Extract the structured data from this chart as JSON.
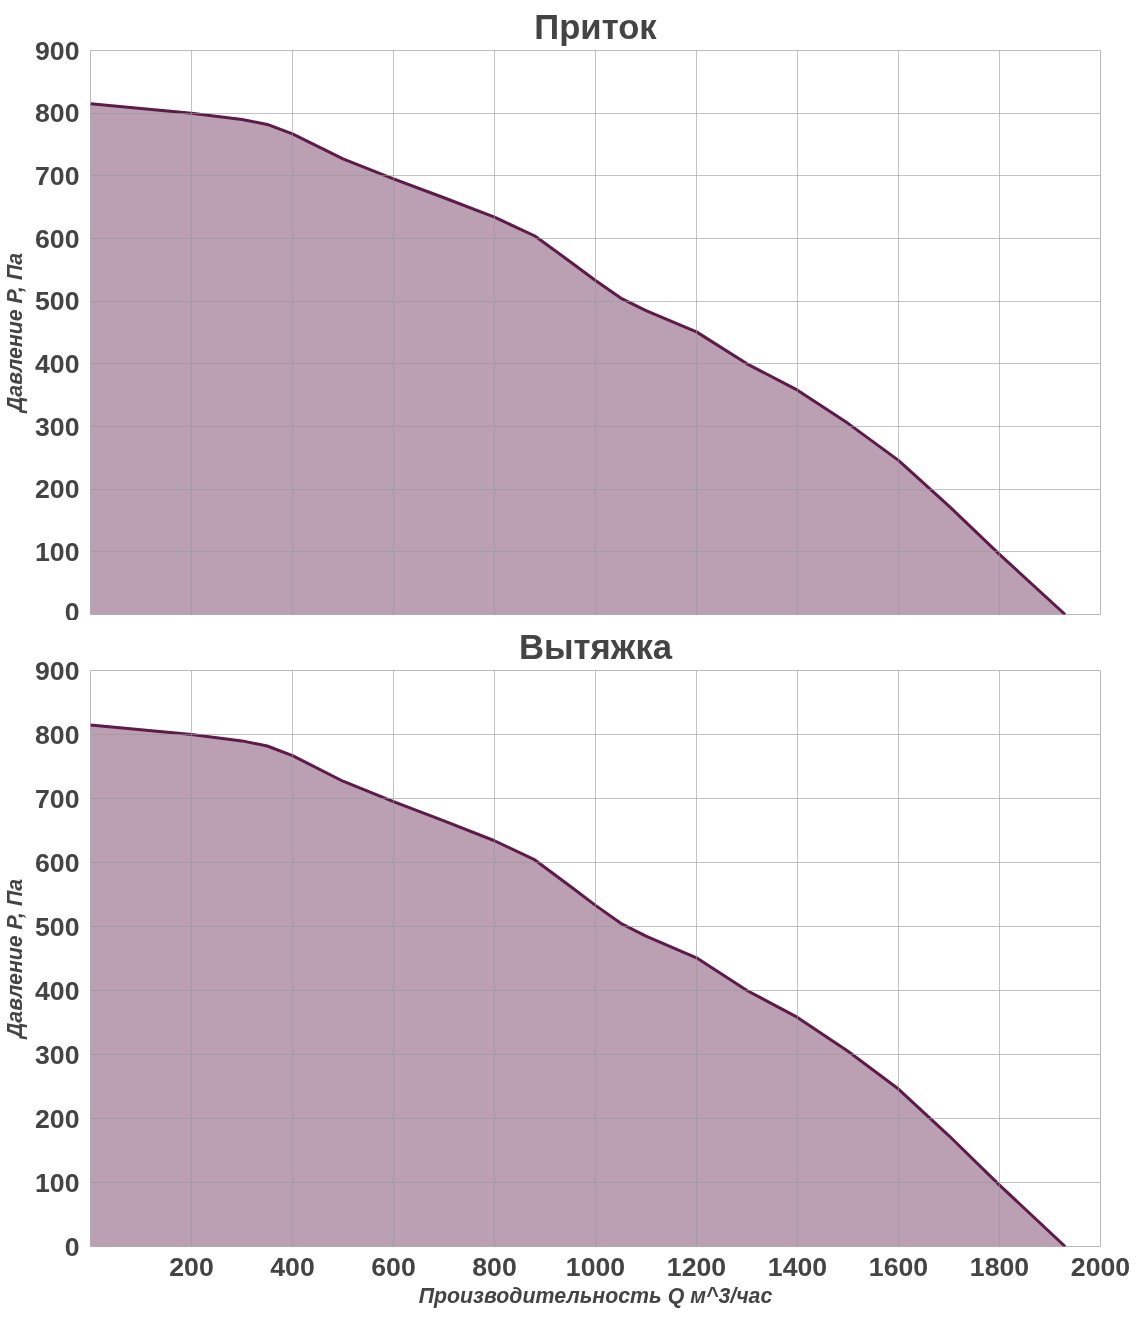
{
  "chart_data": [
    {
      "type": "area",
      "title": "Приток",
      "ylabel": "Давление P, Па",
      "x": [
        0,
        200,
        300,
        350,
        400,
        500,
        600,
        700,
        800,
        880,
        950,
        1000,
        1050,
        1100,
        1200,
        1300,
        1400,
        1500,
        1600,
        1700,
        1800,
        1930
      ],
      "series": [
        {
          "color": "#5e1a48",
          "values": [
            815,
            800,
            790,
            782,
            767,
            727,
            695,
            665,
            634,
            604,
            563,
            533,
            505,
            485,
            451,
            400,
            358,
            305,
            246,
            173,
            96,
            0
          ]
        }
      ],
      "xlim": [
        0,
        2000
      ],
      "xticks": [
        0,
        200,
        400,
        600,
        800,
        1000,
        1200,
        1400,
        1600,
        1800,
        2000
      ],
      "ylim": [
        0,
        900
      ],
      "yticks": [
        0,
        100,
        200,
        300,
        400,
        500,
        600,
        700,
        800,
        900
      ],
      "grid": true,
      "tick_labels": "y"
    },
    {
      "type": "area",
      "title": "Вытяжка",
      "ylabel": "Давление P, Па",
      "xlabel": "Производительность Q м^3/час",
      "x": [
        0,
        200,
        300,
        350,
        400,
        500,
        600,
        700,
        800,
        880,
        950,
        1000,
        1050,
        1100,
        1200,
        1300,
        1400,
        1500,
        1600,
        1700,
        1800,
        1930
      ],
      "series": [
        {
          "color": "#5e1a48",
          "values": [
            815,
            800,
            790,
            782,
            767,
            727,
            695,
            665,
            634,
            604,
            563,
            533,
            505,
            485,
            451,
            400,
            358,
            305,
            246,
            173,
            96,
            0
          ]
        }
      ],
      "xlim": [
        0,
        2000
      ],
      "xticks": [
        {
          "value": 0,
          "label": null
        },
        200,
        400,
        600,
        800,
        1000,
        1200,
        1400,
        1600,
        1800,
        2000
      ],
      "ylim": [
        0,
        900
      ],
      "yticks": [
        0,
        100,
        200,
        300,
        400,
        500,
        600,
        700,
        800,
        900
      ],
      "grid": true
    }
  ]
}
